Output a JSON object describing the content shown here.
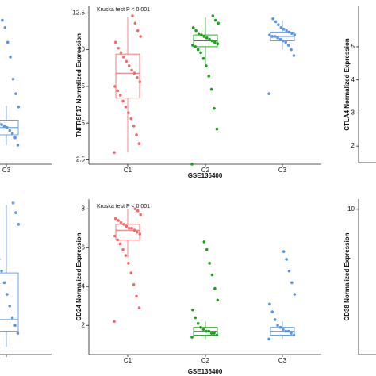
{
  "chart_data": [
    {
      "type": "box",
      "y_label": "TNFRSF17 Normalized Expression",
      "x_label": "GSE136400",
      "annotation": "Kruska test P < 0.001",
      "categories": [
        "C1",
        "C2",
        "C3"
      ],
      "colors": [
        "#f26b6b",
        "#19a319",
        "#5b96e0"
      ],
      "ylim": [
        2.2,
        12.95
      ],
      "yticks": [
        2.5,
        5.0,
        7.5,
        10.0,
        12.5
      ],
      "box_stats": [
        {
          "whisker_low": 3.0,
          "q1": 6.7,
          "median": 8.4,
          "q3": 9.7,
          "whisker_high": 12.2
        },
        {
          "whisker_low": 9.0,
          "q1": 10.2,
          "median": 10.6,
          "q3": 11.0,
          "whisker_high": 12.2
        },
        {
          "whisker_low": 10.0,
          "q1": 10.6,
          "median": 10.9,
          "q3": 11.2,
          "whisker_high": 12.0
        }
      ],
      "points": [
        [
          3.0,
          3.6,
          4.2,
          4.8,
          5.3,
          5.7,
          6.1,
          6.5,
          6.9,
          7.2,
          7.5,
          7.8,
          8.1,
          8.4,
          8.6,
          8.9,
          9.2,
          9.5,
          9.8,
          10.1,
          10.5,
          10.9,
          11.3,
          11.8,
          12.3
        ],
        [
          2.2,
          4.6,
          6.0,
          7.3,
          8.2,
          8.9,
          9.4,
          9.8,
          10.0,
          10.2,
          10.3,
          10.4,
          10.5,
          10.6,
          10.7,
          10.8,
          10.9,
          11.0,
          11.1,
          11.3,
          11.5,
          11.8,
          12.0,
          12.3
        ],
        [
          7.0,
          9.6,
          10.0,
          10.3,
          10.5,
          10.6,
          10.7,
          10.8,
          10.9,
          10.9,
          11.0,
          11.0,
          11.1,
          11.2,
          11.3,
          11.4,
          11.5,
          11.7,
          11.9,
          12.1
        ]
      ]
    },
    {
      "type": "box",
      "y_label": "CD24 Normalized Expression",
      "x_label": "GSE136400",
      "annotation": "Kruska test P < 0.001",
      "categories": [
        "C1",
        "C2",
        "C3"
      ],
      "colors": [
        "#f26b6b",
        "#19a319",
        "#5b96e0"
      ],
      "ylim": [
        0.5,
        8.5
      ],
      "yticks": [
        2,
        4,
        6,
        8
      ],
      "box_stats": [
        {
          "whisker_low": 5.5,
          "q1": 6.4,
          "median": 6.9,
          "q3": 7.2,
          "whisker_high": 8.0
        },
        {
          "whisker_low": 1.3,
          "q1": 1.5,
          "median": 1.7,
          "q3": 1.9,
          "whisker_high": 2.2
        },
        {
          "whisker_low": 1.3,
          "q1": 1.5,
          "median": 1.7,
          "q3": 1.9,
          "whisker_high": 2.2
        }
      ],
      "points": [
        [
          2.2,
          2.9,
          3.5,
          4.1,
          4.7,
          5.2,
          5.6,
          5.9,
          6.2,
          6.4,
          6.6,
          6.7,
          6.8,
          6.9,
          7.0,
          7.0,
          7.1,
          7.2,
          7.3,
          7.4,
          7.5,
          7.7,
          7.9,
          8.0
        ],
        [
          1.4,
          1.5,
          1.6,
          1.6,
          1.7,
          1.7,
          1.8,
          1.9,
          2.1,
          2.4,
          2.8,
          3.3,
          3.9,
          4.6,
          5.2,
          5.9,
          6.3
        ],
        [
          1.3,
          1.5,
          1.6,
          1.7,
          1.7,
          1.8,
          1.9,
          2.0,
          2.3,
          2.7,
          3.1,
          3.6,
          4.2,
          4.8,
          5.4,
          5.8
        ]
      ]
    },
    {
      "type": "box",
      "categories": [
        "C3"
      ],
      "colors": [
        "#5b96e0"
      ],
      "ylim": [
        2.2,
        12.95
      ],
      "box_stats": [
        {
          "whisker_low": 3.5,
          "q1": 4.2,
          "median": 4.7,
          "q3": 5.2,
          "whisker_high": 6.2
        }
      ],
      "points": [
        [
          3.0,
          3.5,
          4.0,
          4.3,
          4.5,
          4.7,
          4.8,
          4.9,
          5.0,
          5.2,
          5.6,
          6.1,
          7.0,
          8.0,
          9.5,
          10.5,
          11.5,
          12.0
        ]
      ]
    },
    {
      "type": "box",
      "categories": [
        null
      ],
      "colors": [
        "#5b96e0"
      ],
      "ylim": [
        0.5,
        8.5
      ],
      "box_stats": [
        {
          "whisker_low": 0.9,
          "q1": 1.7,
          "median": 2.3,
          "q3": 4.7,
          "whisker_high": 8.2
        }
      ],
      "points": [
        [
          1.0,
          1.6,
          2.0,
          2.4,
          3.0,
          3.6,
          4.2,
          4.8,
          5.4,
          6.0,
          6.6,
          7.2,
          7.8,
          8.3
        ]
      ]
    },
    {
      "type": "box",
      "y_label": "CTLA4 Normalized Expression",
      "categories": [],
      "colors": [],
      "ylim": [
        1.5,
        6.22
      ],
      "yticks": [
        2,
        3,
        4,
        5
      ],
      "box_stats": [],
      "points": []
    },
    {
      "type": "box",
      "y_label": "CD38 Normalized Expression",
      "categories": [],
      "colors": [],
      "ylim": [
        0,
        10.7
      ],
      "yticks": [
        10
      ],
      "box_stats": [],
      "points": []
    }
  ]
}
